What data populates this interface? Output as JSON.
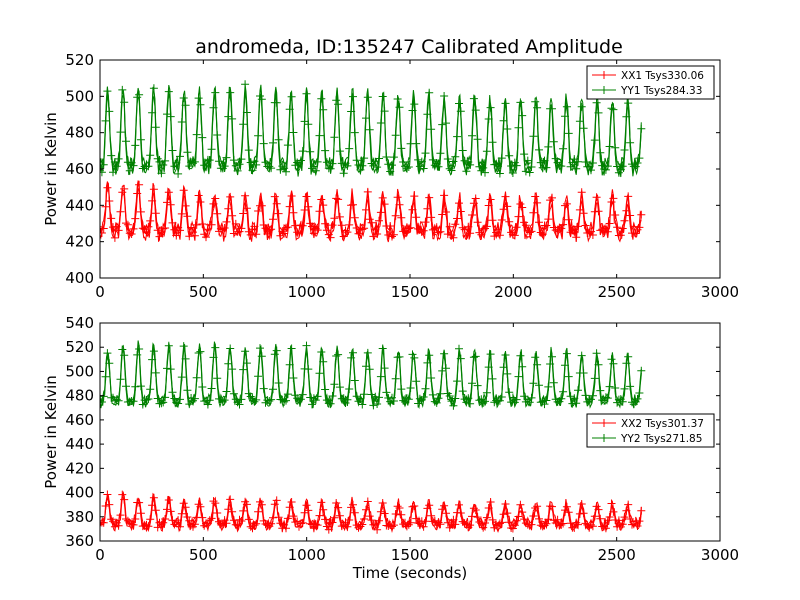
{
  "title": "andromeda, ID:135247 Calibrated Amplitude",
  "colors": {
    "red": "#ff0000",
    "green": "#008000"
  },
  "chart_data": [
    {
      "type": "line",
      "marker": "+",
      "title": "andromeda, ID:135247 Calibrated Amplitude",
      "xlabel": "",
      "ylabel": "Power in Kelvin",
      "xlim": [
        0,
        3000
      ],
      "ylim": [
        400,
        520
      ],
      "xticks": [
        0,
        500,
        1000,
        1500,
        2000,
        2500,
        3000
      ],
      "yticks": [
        400,
        420,
        440,
        460,
        480,
        500,
        520
      ],
      "grid": false,
      "legend": "top-right",
      "x_range_data": [
        0,
        2620
      ],
      "oscillation_period_s": 74,
      "series": [
        {
          "name": "XX1 Tsys330.06",
          "color": "#ff0000",
          "baseline": 427,
          "peaks": [
            452,
            452,
            452,
            450,
            450,
            448,
            447,
            447,
            447,
            446,
            446,
            446,
            446,
            446,
            446,
            446,
            446,
            446,
            446,
            446,
            445,
            445,
            445,
            445,
            445,
            445,
            445,
            445,
            445,
            445,
            445,
            445,
            445,
            445,
            445,
            444
          ]
        },
        {
          "name": "YY1 Tsys284.33",
          "color": "#008000",
          "baseline": 463,
          "peaks": [
            503,
            505,
            506,
            506,
            506,
            505,
            505,
            505,
            505,
            505,
            505,
            504,
            504,
            504,
            504,
            503,
            503,
            503,
            503,
            502,
            502,
            502,
            501,
            501,
            501,
            500,
            500,
            500,
            500,
            500,
            499,
            499,
            499,
            498,
            498,
            498
          ]
        }
      ]
    },
    {
      "type": "line",
      "marker": "+",
      "title": "",
      "xlabel": "Time (seconds)",
      "ylabel": "Power in Kelvin",
      "xlim": [
        0,
        3000
      ],
      "ylim": [
        360,
        540
      ],
      "xticks": [
        0,
        500,
        1000,
        1500,
        2000,
        2500,
        3000
      ],
      "yticks": [
        360,
        380,
        400,
        420,
        440,
        460,
        480,
        500,
        520,
        540
      ],
      "grid": false,
      "legend": "center-right",
      "x_range_data": [
        0,
        2620
      ],
      "oscillation_period_s": 74,
      "series": [
        {
          "name": "XX2 Tsys301.37",
          "color": "#ff0000",
          "baseline": 375,
          "peaks": [
            397,
            398,
            398,
            397,
            396,
            395,
            394,
            394,
            394,
            394,
            394,
            393,
            393,
            393,
            393,
            393,
            393,
            393,
            392,
            392,
            392,
            392,
            392,
            392,
            391,
            391,
            391,
            391,
            391,
            391,
            391,
            390,
            390,
            390,
            390,
            390
          ]
        },
        {
          "name": "YY2 Tsys271.85",
          "color": "#008000",
          "baseline": 477,
          "peaks": [
            517,
            520,
            522,
            523,
            523,
            522,
            522,
            522,
            521,
            521,
            521,
            521,
            520,
            520,
            520,
            520,
            519,
            519,
            519,
            519,
            518,
            518,
            518,
            518,
            517,
            517,
            517,
            517,
            516,
            516,
            516,
            516,
            515,
            515,
            515,
            515
          ]
        }
      ]
    }
  ]
}
